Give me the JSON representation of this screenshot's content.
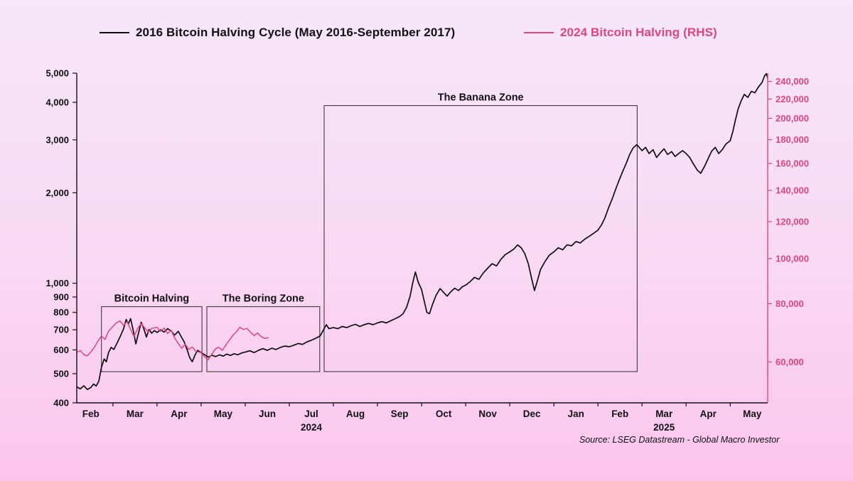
{
  "legend": {
    "series1": {
      "label": "2016 Bitcoin Halving Cycle (May 2016-September 2017)"
    },
    "series2": {
      "label": "2024 Bitcoin Halving (RHS)"
    }
  },
  "source": "Source: LSEG Datastream - Global Macro Investor",
  "colors": {
    "series_2016": "#0d0d0d",
    "series_2024": "#e0457c",
    "right_axis_text": "#e0457c",
    "axis_text": "#111111",
    "box_stroke": "#3c3c3c",
    "background_top": "#f7e7fa",
    "background_bottom": "#fcc5ee"
  },
  "chart_data": {
    "type": "line",
    "title": "",
    "x_axis": {
      "unit": "months since 2024-02-01",
      "min": 0.18,
      "max": 15.85,
      "month_labels": [
        "Feb",
        "Mar",
        "Apr",
        "May",
        "Jun",
        "Jul",
        "Aug",
        "Sep",
        "Oct",
        "Nov",
        "Dec",
        "Jan",
        "Feb",
        "Mar",
        "Apr",
        "May"
      ],
      "year_labels": [
        {
          "text": "2024",
          "month_index": 5
        },
        {
          "text": "2025",
          "month_index": 13
        }
      ]
    },
    "left_axis": {
      "scale": "log",
      "min": 400,
      "max": 5000,
      "ticks": [
        400,
        500,
        600,
        700,
        800,
        900,
        1000,
        2000,
        3000,
        4000,
        5000
      ]
    },
    "right_axis": {
      "scale": "log",
      "min": 49000,
      "max": 250000,
      "ticks": [
        60000,
        80000,
        100000,
        120000,
        140000,
        160000,
        180000,
        200000,
        220000,
        240000
      ]
    },
    "grid": false,
    "annotations": [
      {
        "label": "Bitcoin Halving",
        "x0": 0.74,
        "x1": 3.02,
        "y0": 508,
        "y1": 836
      },
      {
        "label": "The Boring Zone",
        "x0": 3.13,
        "x1": 5.69,
        "y0": 508,
        "y1": 836
      },
      {
        "label": "The Banana Zone",
        "x0": 5.79,
        "x1": 12.89,
        "y0": 508,
        "y1": 3900
      }
    ],
    "series": [
      {
        "name": "2016 Bitcoin Halving Cycle (May 2016-September 2017)",
        "axis": "left",
        "color": "#0d0d0d",
        "points": [
          [
            0.18,
            452
          ],
          [
            0.26,
            445
          ],
          [
            0.34,
            456
          ],
          [
            0.42,
            443
          ],
          [
            0.5,
            450
          ],
          [
            0.56,
            462
          ],
          [
            0.62,
            455
          ],
          [
            0.68,
            472
          ],
          [
            0.74,
            525
          ],
          [
            0.8,
            560
          ],
          [
            0.85,
            548
          ],
          [
            0.9,
            588
          ],
          [
            0.96,
            612
          ],
          [
            1.02,
            602
          ],
          [
            1.1,
            635
          ],
          [
            1.18,
            672
          ],
          [
            1.24,
            705
          ],
          [
            1.3,
            758
          ],
          [
            1.35,
            732
          ],
          [
            1.4,
            763
          ],
          [
            1.46,
            698
          ],
          [
            1.52,
            628
          ],
          [
            1.58,
            682
          ],
          [
            1.64,
            742
          ],
          [
            1.7,
            706
          ],
          [
            1.76,
            662
          ],
          [
            1.82,
            702
          ],
          [
            1.88,
            682
          ],
          [
            1.94,
            696
          ],
          [
            2.0,
            686
          ],
          [
            2.08,
            700
          ],
          [
            2.16,
            688
          ],
          [
            2.24,
            706
          ],
          [
            2.32,
            694
          ],
          [
            2.4,
            672
          ],
          [
            2.48,
            692
          ],
          [
            2.56,
            660
          ],
          [
            2.62,
            636
          ],
          [
            2.68,
            602
          ],
          [
            2.74,
            566
          ],
          [
            2.8,
            548
          ],
          [
            2.86,
            576
          ],
          [
            2.92,
            598
          ],
          [
            3.0,
            588
          ],
          [
            3.08,
            578
          ],
          [
            3.16,
            568
          ],
          [
            3.25,
            576
          ],
          [
            3.33,
            570
          ],
          [
            3.42,
            578
          ],
          [
            3.5,
            572
          ],
          [
            3.58,
            581
          ],
          [
            3.67,
            575
          ],
          [
            3.75,
            583
          ],
          [
            3.83,
            578
          ],
          [
            3.92,
            586
          ],
          [
            4.0,
            590
          ],
          [
            4.1,
            596
          ],
          [
            4.2,
            588
          ],
          [
            4.3,
            598
          ],
          [
            4.4,
            606
          ],
          [
            4.5,
            598
          ],
          [
            4.6,
            608
          ],
          [
            4.7,
            602
          ],
          [
            4.8,
            612
          ],
          [
            4.9,
            618
          ],
          [
            5.0,
            615
          ],
          [
            5.1,
            622
          ],
          [
            5.2,
            630
          ],
          [
            5.3,
            626
          ],
          [
            5.4,
            638
          ],
          [
            5.5,
            646
          ],
          [
            5.6,
            656
          ],
          [
            5.7,
            668
          ],
          [
            5.78,
            702
          ],
          [
            5.84,
            728
          ],
          [
            5.9,
            706
          ],
          [
            6.0,
            712
          ],
          [
            6.1,
            706
          ],
          [
            6.2,
            718
          ],
          [
            6.3,
            712
          ],
          [
            6.4,
            722
          ],
          [
            6.5,
            730
          ],
          [
            6.6,
            718
          ],
          [
            6.7,
            728
          ],
          [
            6.8,
            735
          ],
          [
            6.9,
            728
          ],
          [
            7.0,
            738
          ],
          [
            7.1,
            745
          ],
          [
            7.2,
            738
          ],
          [
            7.3,
            750
          ],
          [
            7.4,
            762
          ],
          [
            7.5,
            775
          ],
          [
            7.58,
            792
          ],
          [
            7.66,
            832
          ],
          [
            7.74,
            905
          ],
          [
            7.8,
            1005
          ],
          [
            7.86,
            1090
          ],
          [
            7.92,
            1012
          ],
          [
            8.0,
            952
          ],
          [
            8.06,
            872
          ],
          [
            8.12,
            800
          ],
          [
            8.18,
            792
          ],
          [
            8.25,
            852
          ],
          [
            8.33,
            912
          ],
          [
            8.42,
            960
          ],
          [
            8.5,
            932
          ],
          [
            8.58,
            906
          ],
          [
            8.66,
            936
          ],
          [
            8.75,
            962
          ],
          [
            8.84,
            946
          ],
          [
            8.92,
            972
          ],
          [
            9.0,
            986
          ],
          [
            9.1,
            1012
          ],
          [
            9.2,
            1046
          ],
          [
            9.3,
            1030
          ],
          [
            9.4,
            1082
          ],
          [
            9.5,
            1122
          ],
          [
            9.6,
            1162
          ],
          [
            9.7,
            1142
          ],
          [
            9.8,
            1202
          ],
          [
            9.9,
            1246
          ],
          [
            10.0,
            1272
          ],
          [
            10.1,
            1302
          ],
          [
            10.18,
            1342
          ],
          [
            10.26,
            1312
          ],
          [
            10.34,
            1256
          ],
          [
            10.42,
            1162
          ],
          [
            10.5,
            1032
          ],
          [
            10.56,
            946
          ],
          [
            10.62,
            1012
          ],
          [
            10.7,
            1112
          ],
          [
            10.8,
            1182
          ],
          [
            10.9,
            1242
          ],
          [
            11.0,
            1272
          ],
          [
            11.1,
            1312
          ],
          [
            11.2,
            1292
          ],
          [
            11.3,
            1342
          ],
          [
            11.4,
            1332
          ],
          [
            11.5,
            1376
          ],
          [
            11.6,
            1362
          ],
          [
            11.7,
            1402
          ],
          [
            11.8,
            1432
          ],
          [
            11.9,
            1466
          ],
          [
            12.0,
            1502
          ],
          [
            12.08,
            1562
          ],
          [
            12.16,
            1652
          ],
          [
            12.24,
            1782
          ],
          [
            12.32,
            1902
          ],
          [
            12.4,
            2052
          ],
          [
            12.48,
            2202
          ],
          [
            12.56,
            2352
          ],
          [
            12.64,
            2502
          ],
          [
            12.72,
            2682
          ],
          [
            12.8,
            2822
          ],
          [
            12.88,
            2892
          ],
          [
            13.0,
            2762
          ],
          [
            13.08,
            2832
          ],
          [
            13.16,
            2702
          ],
          [
            13.25,
            2782
          ],
          [
            13.33,
            2622
          ],
          [
            13.42,
            2722
          ],
          [
            13.5,
            2802
          ],
          [
            13.58,
            2682
          ],
          [
            13.67,
            2742
          ],
          [
            13.75,
            2642
          ],
          [
            13.83,
            2702
          ],
          [
            13.92,
            2762
          ],
          [
            14.0,
            2702
          ],
          [
            14.08,
            2622
          ],
          [
            14.16,
            2502
          ],
          [
            14.25,
            2382
          ],
          [
            14.33,
            2322
          ],
          [
            14.42,
            2452
          ],
          [
            14.5,
            2602
          ],
          [
            14.58,
            2752
          ],
          [
            14.66,
            2832
          ],
          [
            14.74,
            2702
          ],
          [
            14.82,
            2782
          ],
          [
            14.9,
            2902
          ],
          [
            15.0,
            2982
          ],
          [
            15.06,
            3202
          ],
          [
            15.12,
            3502
          ],
          [
            15.18,
            3802
          ],
          [
            15.25,
            4052
          ],
          [
            15.32,
            4252
          ],
          [
            15.4,
            4152
          ],
          [
            15.48,
            4352
          ],
          [
            15.56,
            4302
          ],
          [
            15.64,
            4502
          ],
          [
            15.72,
            4652
          ],
          [
            15.78,
            4902
          ],
          [
            15.82,
            4982
          ],
          [
            15.85,
            4822
          ]
        ]
      },
      {
        "name": "2024 Bitcoin Halving",
        "axis": "right",
        "color": "#e0457c",
        "points": [
          [
            0.18,
            62800
          ],
          [
            0.26,
            63500
          ],
          [
            0.34,
            62200
          ],
          [
            0.42,
            61800
          ],
          [
            0.5,
            63000
          ],
          [
            0.58,
            64500
          ],
          [
            0.66,
            66500
          ],
          [
            0.74,
            68200
          ],
          [
            0.82,
            67000
          ],
          [
            0.9,
            69800
          ],
          [
            1.0,
            71500
          ],
          [
            1.08,
            72800
          ],
          [
            1.16,
            73500
          ],
          [
            1.24,
            71800
          ],
          [
            1.32,
            73200
          ],
          [
            1.4,
            70500
          ],
          [
            1.48,
            68000
          ],
          [
            1.56,
            70800
          ],
          [
            1.64,
            72500
          ],
          [
            1.72,
            71000
          ],
          [
            1.8,
            69500
          ],
          [
            1.88,
            70800
          ],
          [
            2.0,
            71200
          ],
          [
            2.08,
            69800
          ],
          [
            2.16,
            70900
          ],
          [
            2.24,
            69000
          ],
          [
            2.32,
            70200
          ],
          [
            2.4,
            67500
          ],
          [
            2.48,
            65800
          ],
          [
            2.56,
            64200
          ],
          [
            2.64,
            65500
          ],
          [
            2.72,
            63800
          ],
          [
            2.8,
            64600
          ],
          [
            2.88,
            63200
          ],
          [
            3.0,
            62800
          ],
          [
            3.08,
            61500
          ],
          [
            3.16,
            60600
          ],
          [
            3.24,
            62300
          ],
          [
            3.32,
            63900
          ],
          [
            3.4,
            64500
          ],
          [
            3.48,
            63500
          ],
          [
            3.56,
            65200
          ],
          [
            3.64,
            66800
          ],
          [
            3.72,
            68400
          ],
          [
            3.8,
            69600
          ],
          [
            3.88,
            71200
          ],
          [
            3.96,
            70400
          ],
          [
            4.04,
            70800
          ],
          [
            4.12,
            69500
          ],
          [
            4.2,
            68300
          ],
          [
            4.28,
            69200
          ],
          [
            4.36,
            68000
          ],
          [
            4.44,
            67400
          ],
          [
            4.52,
            67600
          ]
        ]
      }
    ]
  }
}
